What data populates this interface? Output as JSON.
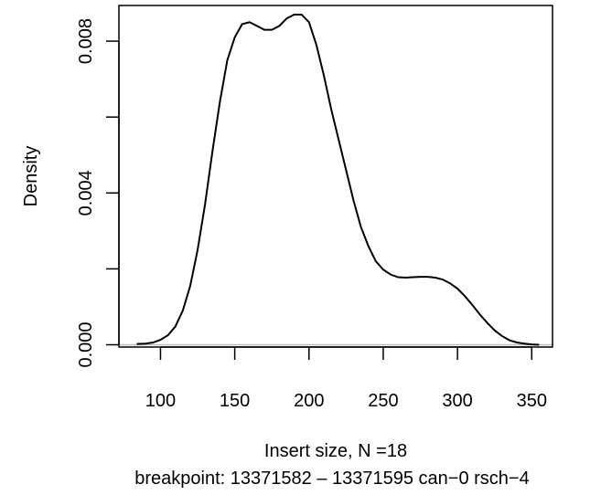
{
  "chart_data": {
    "type": "line",
    "title": "",
    "xlabel": "Insert size, N =18",
    "sublabel": "breakpoint: 13371582 – 13371595 can−0 rsch−4",
    "ylabel": "Density",
    "xlim": [
      72,
      364
    ],
    "ylim": [
      -6e-05,
      0.00894
    ],
    "x_ticks": [
      100,
      150,
      200,
      250,
      300,
      350
    ],
    "x_tick_labels": [
      "100",
      "150",
      "200",
      "250",
      "300",
      "350"
    ],
    "y_ticks": [
      0.0,
      0.002,
      0.004,
      0.006,
      0.008
    ],
    "y_tick_labels": [
      "0.000",
      "",
      "0.004",
      "",
      "0.008"
    ],
    "grid": false,
    "baseline": 0,
    "series": [
      {
        "x": [
          84,
          90,
          95,
          100,
          105,
          110,
          115,
          120,
          125,
          130,
          135,
          140,
          145,
          150,
          155,
          160,
          165,
          170,
          175,
          180,
          185,
          190,
          195,
          200,
          205,
          210,
          215,
          220,
          225,
          230,
          235,
          240,
          245,
          250,
          255,
          260,
          265,
          270,
          275,
          280,
          285,
          290,
          295,
          300,
          305,
          310,
          315,
          320,
          325,
          330,
          335,
          340,
          345,
          350,
          355
        ],
        "y": [
          2e-05,
          3e-05,
          6e-05,
          0.00013,
          0.00025,
          0.00048,
          0.0009,
          0.00155,
          0.0025,
          0.0037,
          0.0051,
          0.0064,
          0.0075,
          0.0081,
          0.00845,
          0.0085,
          0.0084,
          0.0083,
          0.0083,
          0.0084,
          0.0086,
          0.0087,
          0.0087,
          0.0085,
          0.0079,
          0.0071,
          0.0062,
          0.0054,
          0.0046,
          0.0038,
          0.0031,
          0.0026,
          0.0022,
          0.00198,
          0.00185,
          0.00178,
          0.00177,
          0.00178,
          0.00179,
          0.00179,
          0.00177,
          0.00172,
          0.00162,
          0.00148,
          0.00128,
          0.00105,
          0.0008,
          0.00058,
          0.00038,
          0.00023,
          0.00012,
          6e-05,
          3e-05,
          1e-05,
          0.0
        ]
      }
    ]
  }
}
